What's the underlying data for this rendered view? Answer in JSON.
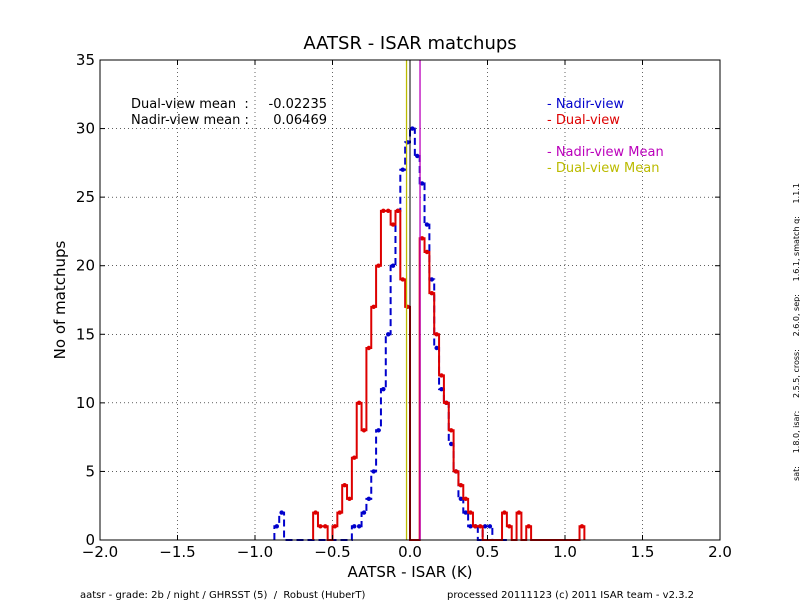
{
  "chart_data": {
    "type": "histogram",
    "title": "AATSR -  ISAR matchups",
    "xlabel": "AATSR -  ISAR (K)",
    "ylabel": "No of matchups",
    "xlim": [
      -2.0,
      2.0
    ],
    "ylim": [
      0,
      35
    ],
    "xticks": [
      -2.0,
      -1.5,
      -1.0,
      -0.5,
      0.0,
      0.5,
      1.0,
      1.5,
      2.0
    ],
    "xtick_labels": [
      "−2.0",
      "−1.5",
      "−1.0",
      "−0.5",
      "0.0",
      "0.5",
      "1.0",
      "1.5",
      "2.0"
    ],
    "yticks": [
      0,
      5,
      10,
      15,
      20,
      25,
      30,
      35
    ],
    "ytick_labels": [
      "0",
      "5",
      "10",
      "15",
      "20",
      "25",
      "30",
      "35"
    ],
    "grid": true,
    "legend_position": "top-right",
    "legend": [
      {
        "label": "- Nadir-view",
        "color": "#0000cc"
      },
      {
        "label": "- Dual-view",
        "color": "#dd0000"
      },
      {
        "label": "- Nadir-view Mean",
        "color": "#bb00bb"
      },
      {
        "label": "- Dual-view Mean",
        "color": "#bbbb00"
      }
    ],
    "stats": [
      {
        "label": "Dual-view mean  :",
        "value": "-0.02235"
      },
      {
        "label": "Nadir-view mean :",
        "value": "0.06469"
      }
    ],
    "means": {
      "dual": -0.02235,
      "nadir": 0.06469
    },
    "bin_width": 0.03125,
    "series": [
      {
        "name": "- Nadir-view",
        "color": "#0000cc",
        "style": "dashed-step",
        "bin_start": [
          -0.875,
          -0.84375,
          -0.8125,
          -0.78125,
          -0.75,
          -0.71875,
          -0.6875,
          -0.65625,
          -0.625,
          -0.59375,
          -0.5625,
          -0.53125,
          -0.5,
          -0.46875,
          -0.4375,
          -0.40625,
          -0.375,
          -0.34375,
          -0.3125,
          -0.28125,
          -0.25,
          -0.21875,
          -0.1875,
          -0.15625,
          -0.125,
          -0.09375,
          -0.0625,
          -0.03125,
          0.0,
          0.03125,
          0.0625,
          0.09375,
          0.125,
          0.15625,
          0.1875,
          0.21875,
          0.25,
          0.28125,
          0.3125,
          0.34375,
          0.375,
          0.40625,
          0.4375,
          0.46875,
          0.5,
          0.53125,
          0.5625,
          0.59375
        ],
        "counts": [
          1,
          2,
          0,
          0,
          0,
          0,
          0,
          0,
          0,
          0,
          0,
          0,
          0,
          0,
          0,
          0,
          1,
          1,
          2,
          3,
          5,
          8,
          11,
          15,
          20,
          24,
          27,
          29,
          30,
          28,
          26,
          23,
          19,
          14,
          11,
          10,
          7,
          5,
          3,
          2,
          1,
          1,
          0,
          1,
          1,
          0,
          0,
          0
        ]
      },
      {
        "name": "- Dual-view",
        "color": "#dd0000",
        "style": "solid-step",
        "bin_start": [
          -0.625,
          -0.59375,
          -0.5625,
          -0.53125,
          -0.5,
          -0.46875,
          -0.4375,
          -0.40625,
          -0.375,
          -0.34375,
          -0.3125,
          -0.28125,
          -0.25,
          -0.21875,
          -0.1875,
          -0.15625,
          -0.125,
          -0.09375,
          -0.0625,
          -0.03125,
          0.0,
          0.03125,
          0.0625,
          0.09375,
          0.125,
          0.15625,
          0.1875,
          0.21875,
          0.25,
          0.28125,
          0.3125,
          0.34375,
          0.375,
          0.40625,
          0.4375,
          0.46875,
          0.5,
          0.53125,
          0.5625,
          0.59375,
          0.625,
          0.65625,
          0.6875,
          0.71875,
          0.75,
          0.78125,
          0.8125,
          0.84375,
          0.875,
          0.90625,
          0.9375,
          0.96875,
          1.0,
          1.03125,
          1.0625,
          1.09375
        ],
        "counts": [
          2,
          1,
          1,
          0,
          1,
          2,
          4,
          3,
          6,
          10,
          8,
          14,
          17,
          20,
          24,
          24,
          23,
          24,
          19,
          17,
          0,
          0,
          22,
          21,
          18,
          15,
          12,
          10,
          8,
          5,
          4,
          3,
          2,
          1,
          1,
          0,
          0,
          0,
          0,
          2,
          1,
          0,
          2,
          0,
          1,
          0,
          0,
          0,
          0,
          0,
          0,
          0,
          0,
          0,
          0,
          1
        ]
      }
    ]
  },
  "footer": {
    "left": "aatsr - grade: 2b / night / GHRSST (5)  /  Robust (HuberT)",
    "right": "processed 20111123 (c) 2011 ISAR team - v2.3.2"
  },
  "side_note": "sat:     1.8.0, isar:     2.5.5, cross:     2.6.0, sep:     1.6.1, smatch q:     1.1.1"
}
